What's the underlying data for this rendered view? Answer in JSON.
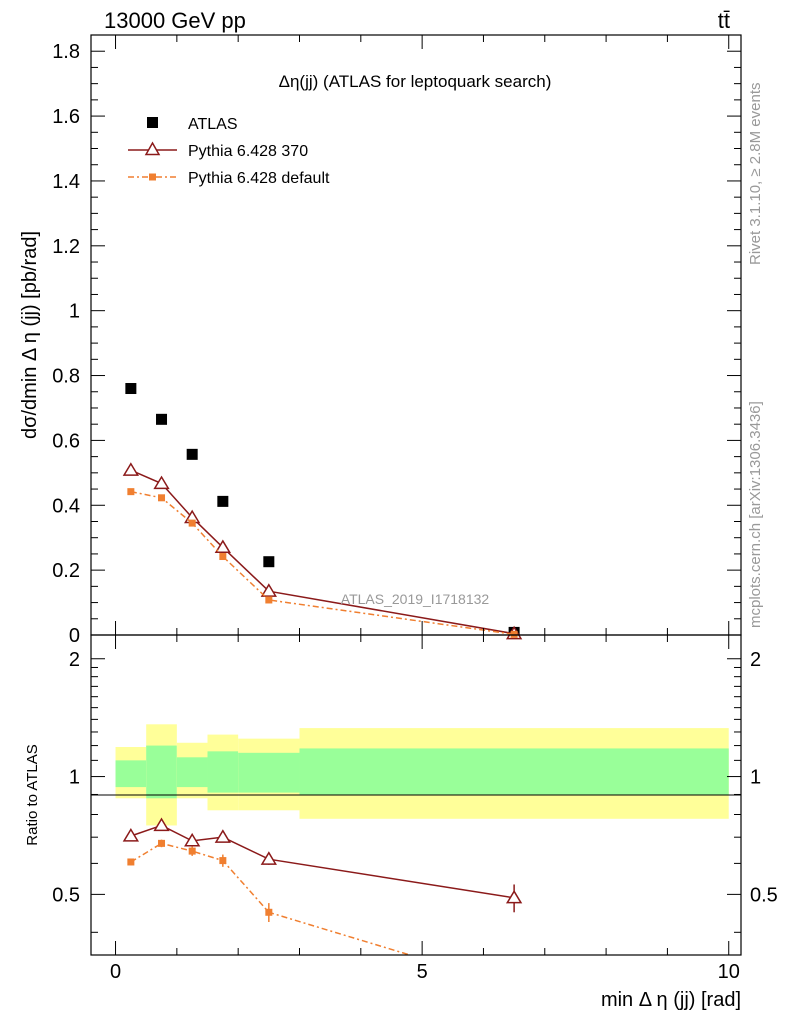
{
  "header": {
    "left": "13000 GeV pp",
    "right": "tt̄"
  },
  "side_texts": {
    "rivet": "Rivet 3.1.10, ≥ 2.8M events",
    "mcplots": "mcplots.cern.ch [arXiv:1306.3436]"
  },
  "chart_data": [
    {
      "type": "scatter",
      "title": "Δη(jj) (ATLAS for leptoquark search)",
      "analysis_label": "ATLAS_2019_I1718132",
      "xlabel": "min Δ η (jj) [rad]",
      "ylabel": "dσ/dmin Δ η (jj) [pb/rad]",
      "xlim": [
        -0.4,
        10.2
      ],
      "ylim": [
        0,
        1.85
      ],
      "yticks": [
        0,
        0.2,
        0.4,
        0.6,
        0.8,
        1,
        1.2,
        1.4,
        1.6,
        1.8
      ],
      "ytick_labels": [
        "0",
        "0.2",
        "0.4",
        "0.6",
        "0.8",
        "1",
        "1.2",
        "1.4",
        "1.6",
        "1.8"
      ],
      "legend_position": "top-left",
      "series": [
        {
          "name": "ATLAS",
          "color": "#000000",
          "marker": "square",
          "x": [
            0.25,
            0.75,
            1.25,
            1.75,
            2.5,
            6.5
          ],
          "y": [
            0.76,
            0.665,
            0.557,
            0.412,
            0.226,
            0.008
          ]
        },
        {
          "name": "Pythia 6.428 370",
          "color": "#8b1a1a",
          "marker": "open-triangle",
          "line": "solid",
          "x": [
            0.25,
            0.75,
            1.25,
            1.75,
            2.5,
            6.5
          ],
          "y": [
            0.508,
            0.467,
            0.362,
            0.27,
            0.135,
            0.004
          ]
        },
        {
          "name": "Pythia 6.428 default",
          "color": "#f07f30",
          "marker": "filled-square",
          "line": "dash-dot",
          "x": [
            0.25,
            0.75,
            1.25,
            1.75,
            2.5,
            6.5
          ],
          "y": [
            0.442,
            0.423,
            0.345,
            0.242,
            0.108,
            0.002
          ]
        }
      ]
    },
    {
      "type": "scatter",
      "xlabel": "min Δ η (jj) [rad]",
      "ylabel": "Ratio to ATLAS",
      "xlim": [
        -0.4,
        10.2
      ],
      "ylim": [
        0.35,
        2.3
      ],
      "yticks": [
        0.5,
        1,
        2
      ],
      "ytick_labels": [
        "0.5",
        "1",
        "2"
      ],
      "xticks": [
        0,
        5,
        10
      ],
      "xtick_labels": [
        "0",
        "5",
        "10"
      ],
      "bands": {
        "edges": [
          0,
          0.5,
          1,
          1.5,
          2,
          3,
          10
        ],
        "yellow_low": [
          0.88,
          0.75,
          0.88,
          0.82,
          0.82,
          0.78
        ],
        "yellow_high": [
          1.19,
          1.36,
          1.22,
          1.28,
          1.25,
          1.33
        ],
        "green_low": [
          0.94,
          0.88,
          0.94,
          0.91,
          0.91,
          0.9
        ],
        "green_high": [
          1.1,
          1.2,
          1.12,
          1.16,
          1.15,
          1.18
        ],
        "yellow_color": "#ffff99",
        "green_color": "#99ff99"
      },
      "series": [
        {
          "name": "Pythia 6.428 370",
          "color": "#8b1a1a",
          "marker": "open-triangle",
          "line": "solid",
          "x": [
            0.25,
            0.75,
            1.25,
            1.75,
            2.5,
            6.5
          ],
          "y": [
            0.705,
            0.75,
            0.685,
            0.7,
            0.615,
            0.49
          ],
          "err": [
            0.01,
            0.012,
            0.012,
            0.015,
            0.02,
            0.04
          ]
        },
        {
          "name": "Pythia 6.428 default",
          "color": "#f07f30",
          "marker": "filled-square",
          "line": "dash-dot",
          "x": [
            0.25,
            0.75,
            1.25,
            1.75,
            2.5,
            4.8
          ],
          "y": [
            0.605,
            0.675,
            0.645,
            0.61,
            0.45,
            0.35
          ],
          "err": [
            0.012,
            0.015,
            0.018,
            0.022,
            0.025,
            0
          ],
          "hidden_marker_last": true
        }
      ]
    }
  ]
}
